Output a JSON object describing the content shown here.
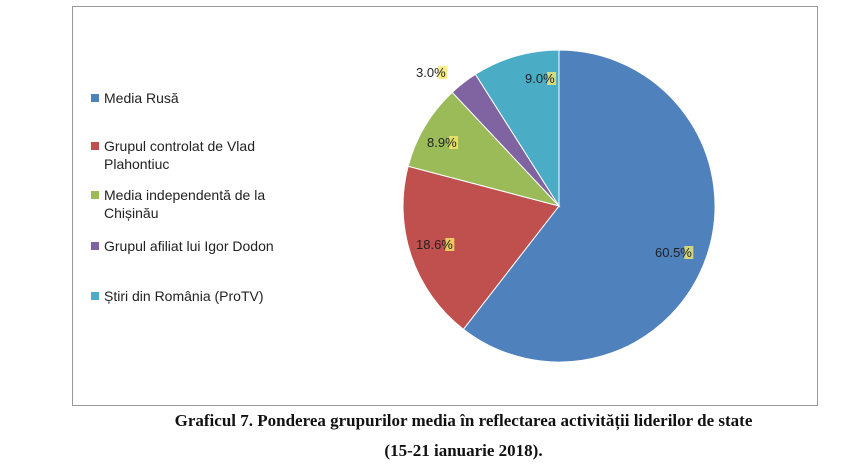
{
  "caption": {
    "line1": "Graficul 7. Ponderea grupurilor media în reflectarea activității liderilor de state",
    "line2": "(15-21 ianuarie 2018)."
  },
  "colors": {
    "media_rusa": "#4F81BD",
    "vlad_plahotniuc": "#C0504D",
    "media_independenta": "#9BBB59",
    "igor_dodon": "#8064A2",
    "stiri_romania": "#4BACC6",
    "label_highlight": "#F5E96B"
  },
  "chart_data": {
    "type": "pie",
    "labels": [
      "Media Rusă",
      "Grupul controlat de Vlad Plahontiuc",
      "Media independentă de la Chișinău",
      "Grupul afiliat lui Igor Dodon",
      "Știri din România (ProTV)"
    ],
    "values": [
      60.5,
      18.6,
      8.9,
      3.0,
      9.0
    ],
    "value_labels": [
      "60.5%",
      "18.6%",
      "8.9%",
      "3.0%",
      "9.0%"
    ],
    "legend_position": "left"
  },
  "legend": [
    {
      "line1": "Media Rusă",
      "line2": ""
    },
    {
      "line1": "Grupul controlat de Vlad",
      "line2": "Plahontiuc"
    },
    {
      "line1": "Media independentă de la",
      "line2": "Chișinău"
    },
    {
      "line1": "Grupul afiliat lui Igor Dodon",
      "line2": ""
    },
    {
      "line1": "Știri din România (ProTV)",
      "line2": ""
    }
  ]
}
